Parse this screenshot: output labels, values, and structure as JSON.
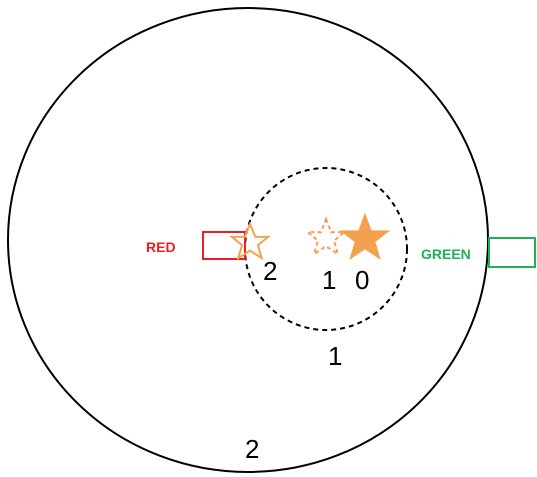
{
  "labels": {
    "red": "RED",
    "green": "GREEN"
  },
  "star_numbers": {
    "star_a": "2",
    "star_b": "1",
    "star_c": "0"
  },
  "zone_numbers": {
    "inner": "1",
    "outer": "2"
  },
  "colors": {
    "red": "#ee1c25",
    "green": "#1db254",
    "star": "#f4a14f",
    "circle": "#000000",
    "background": "#ffffff"
  }
}
